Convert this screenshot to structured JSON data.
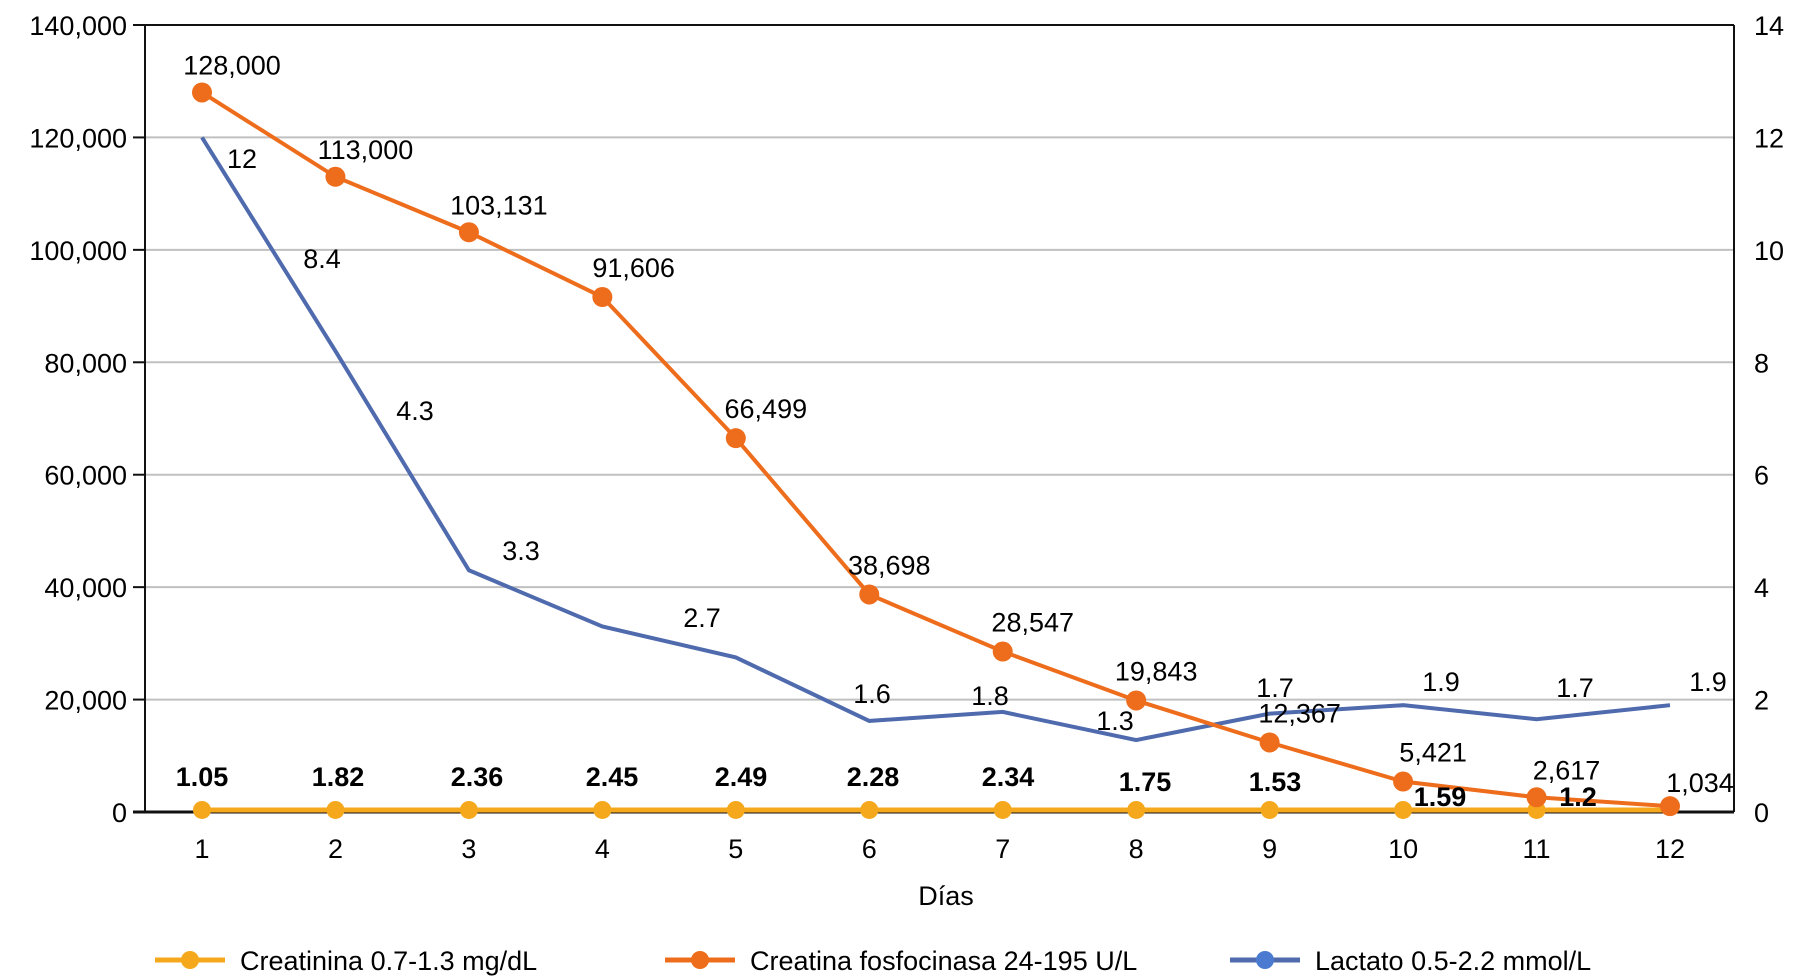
{
  "chart_data": {
    "type": "line",
    "title": "",
    "xlabel": "Días",
    "ylabel_left": "",
    "ylabel_right": "",
    "categories": [
      "1",
      "2",
      "3",
      "4",
      "5",
      "6",
      "7",
      "8",
      "9",
      "10",
      "11",
      "12"
    ],
    "y_left": {
      "range": [
        0,
        140000
      ],
      "ticks": [
        0,
        20000,
        40000,
        60000,
        80000,
        100000,
        120000,
        140000
      ],
      "tick_labels": [
        "0",
        "20,000",
        "40,000",
        "60,000",
        "80,000",
        "100,000",
        "120,000",
        "140,000"
      ]
    },
    "y_right": {
      "range": [
        0,
        14
      ],
      "ticks": [
        0,
        2,
        4,
        6,
        8,
        10,
        12,
        14
      ],
      "tick_labels": [
        "0",
        "2",
        "4",
        "6",
        "8",
        "10",
        "12",
        "14"
      ]
    },
    "grid": true,
    "legend_position": "bottom",
    "series": [
      {
        "name": "Creatinina 0.7-1.3 mg/dL",
        "color": "#F5A81C",
        "axis": "left",
        "markers": true,
        "values": [
          1.05,
          1.82,
          2.36,
          2.45,
          2.49,
          2.28,
          2.34,
          1.75,
          1.53,
          1.59,
          1.2,
          null
        ],
        "labels": [
          "1.05",
          "1.82",
          "2.36",
          "2.45",
          "2.49",
          "2.28",
          "2.34",
          "1.75",
          "1.53",
          "1.59",
          "1.2",
          ""
        ],
        "labels_bold": true
      },
      {
        "name": "Creatina fosfocinasa 24-195 U/L",
        "color": "#EE6D1C",
        "axis": "left",
        "markers": true,
        "values": [
          128000,
          113000,
          103131,
          91606,
          66499,
          38698,
          28547,
          19843,
          12367,
          5421,
          2617,
          1034
        ],
        "labels": [
          "128,000",
          "113,000",
          "103,131",
          "91,606",
          "66,499",
          "38,698",
          "28,547",
          "19,843",
          "12,367",
          "5,421",
          "2,617",
          "1,034"
        ]
      },
      {
        "name": "Lactato 0.5-2.2 mmol/L",
        "color": "#4F6BAE",
        "axis": "right",
        "markers": false,
        "values": [
          12,
          8.4,
          4.3,
          3.3,
          2.7,
          1.6,
          1.8,
          1.3,
          1.7,
          1.9,
          1.7,
          1.9
        ],
        "labels": [
          "12",
          "8.4",
          "4.3",
          "3.3",
          "2.7",
          "1.6",
          "1.8",
          "1.3",
          "1.7",
          "1.9",
          "1.7",
          "1.9"
        ]
      }
    ]
  }
}
